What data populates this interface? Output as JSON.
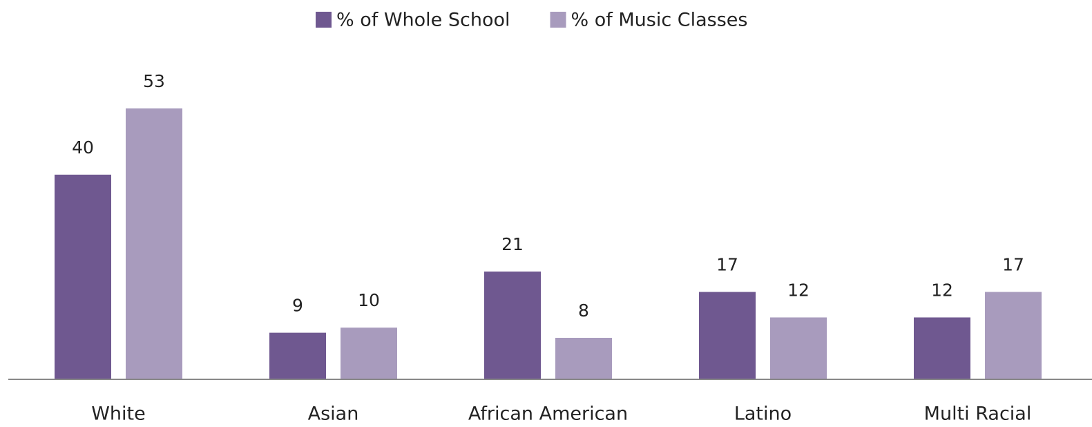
{
  "chart_data": {
    "type": "bar",
    "categories": [
      "White",
      "Asian",
      "African American",
      "Latino",
      "Multi Racial"
    ],
    "series": [
      {
        "name": "% of Whole School",
        "color": "#6f5890",
        "values": [
          40,
          9,
          21,
          17,
          12
        ]
      },
      {
        "name": "% of Music Classes",
        "color": "#a89bbd",
        "values": [
          53,
          10,
          8,
          12,
          17
        ]
      }
    ],
    "legend": "top"
  }
}
